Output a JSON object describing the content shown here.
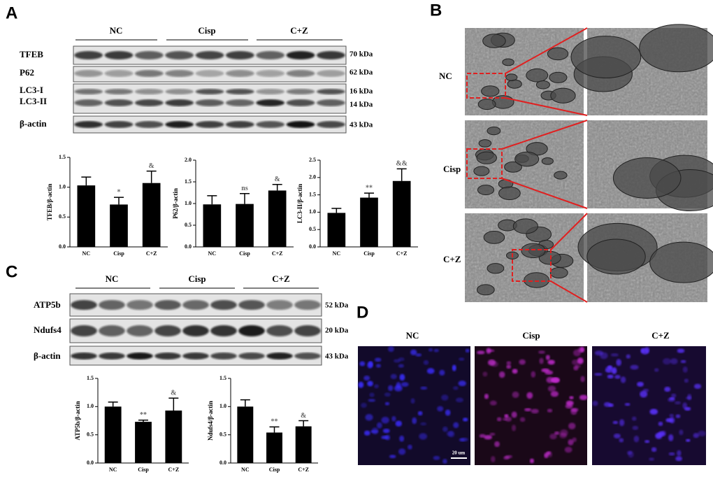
{
  "figure": {
    "panels": [
      "A",
      "B",
      "C",
      "D"
    ]
  },
  "blot_a": {
    "groups": [
      "NC",
      "Cisp",
      "C+Z"
    ],
    "proteins": [
      "TFEB",
      "P62",
      "LC3-I",
      "LC3-II",
      "β-actin"
    ],
    "sizes": [
      "70 kDa",
      "62 kDa",
      "16 kDa",
      "14 kDa",
      "43 kDa"
    ]
  },
  "tem": {
    "groups": [
      "NC",
      "Cisp",
      "C+Z"
    ]
  },
  "blot_c": {
    "groups": [
      "NC",
      "Cisp",
      "C+Z"
    ],
    "proteins": [
      "ATP5b",
      "Ndufs4",
      "β-actin"
    ],
    "sizes": [
      "52 kDa",
      "20 kDa",
      "43 kDa"
    ]
  },
  "fluorescence": {
    "groups": [
      "NC",
      "Cisp",
      "C+Z"
    ],
    "scale_bar": "20 um"
  },
  "chart_data": [
    {
      "type": "bar",
      "ylabel": "TFEB/β-actin",
      "categories": [
        "NC",
        "Cisp",
        "C+Z"
      ],
      "values": [
        1.03,
        0.71,
        1.07
      ],
      "errors": [
        0.14,
        0.12,
        0.2
      ],
      "annotations": [
        null,
        "*",
        "&"
      ],
      "color": "#000000",
      "ylim": [
        0,
        1.5
      ],
      "yticks": [
        {
          "value": 0,
          "label": "0.0"
        },
        {
          "value": 0.5,
          "label": "0.5"
        },
        {
          "value": 1,
          "label": "1.0"
        },
        {
          "value": 1.5,
          "label": "1.5"
        }
      ]
    },
    {
      "type": "bar",
      "ylabel": "P62/β-actin",
      "categories": [
        "NC",
        "Cisp",
        "C+Z"
      ],
      "values": [
        0.98,
        0.99,
        1.3
      ],
      "errors": [
        0.2,
        0.24,
        0.14
      ],
      "annotations": [
        null,
        "ns",
        "&"
      ],
      "color": "#000000",
      "ylim": [
        0,
        2
      ],
      "yticks": [
        {
          "value": 0,
          "label": "0.0"
        },
        {
          "value": 0.5,
          "label": "0.5"
        },
        {
          "value": 1,
          "label": "1.0"
        },
        {
          "value": 1.5,
          "label": "1.5"
        },
        {
          "value": 2,
          "label": "2.0"
        }
      ]
    },
    {
      "type": "bar",
      "ylabel": "LC3-II/β-actin",
      "categories": [
        "NC",
        "Cisp",
        "C+Z"
      ],
      "values": [
        0.98,
        1.42,
        1.9
      ],
      "errors": [
        0.13,
        0.13,
        0.35
      ],
      "annotations": [
        null,
        "**",
        "&&"
      ],
      "color": "#000000",
      "ylim": [
        0,
        2.5
      ],
      "yticks": [
        {
          "value": 0,
          "label": "0.0"
        },
        {
          "value": 0.5,
          "label": "0.5"
        },
        {
          "value": 1,
          "label": "1.0"
        },
        {
          "value": 1.5,
          "label": "1.5"
        },
        {
          "value": 2,
          "label": "2.0"
        },
        {
          "value": 2.5,
          "label": "2.5"
        }
      ]
    },
    {
      "type": "bar",
      "ylabel": "ATP5b/β-actin",
      "categories": [
        "NC",
        "Cisp",
        "C+Z"
      ],
      "values": [
        1.0,
        0.73,
        0.93
      ],
      "errors": [
        0.08,
        0.03,
        0.22
      ],
      "annotations": [
        null,
        "**",
        "&"
      ],
      "color": "#000000",
      "ylim": [
        0,
        1.5
      ],
      "yticks": [
        {
          "value": 0,
          "label": "0.0"
        },
        {
          "value": 0.5,
          "label": "0.5"
        },
        {
          "value": 1,
          "label": "1.0"
        },
        {
          "value": 1.5,
          "label": "1.5"
        }
      ]
    },
    {
      "type": "bar",
      "ylabel": "Ndufs4/β-actin",
      "categories": [
        "NC",
        "Cisp",
        "C+Z"
      ],
      "values": [
        1.0,
        0.54,
        0.65
      ],
      "errors": [
        0.12,
        0.1,
        0.1
      ],
      "annotations": [
        null,
        "**",
        "&"
      ],
      "color": "#000000",
      "ylim": [
        0,
        1.5
      ],
      "yticks": [
        {
          "value": 0,
          "label": "0.0"
        },
        {
          "value": 0.5,
          "label": "0.5"
        },
        {
          "value": 1,
          "label": "1.0"
        },
        {
          "value": 1.5,
          "label": "1.5"
        }
      ]
    }
  ]
}
